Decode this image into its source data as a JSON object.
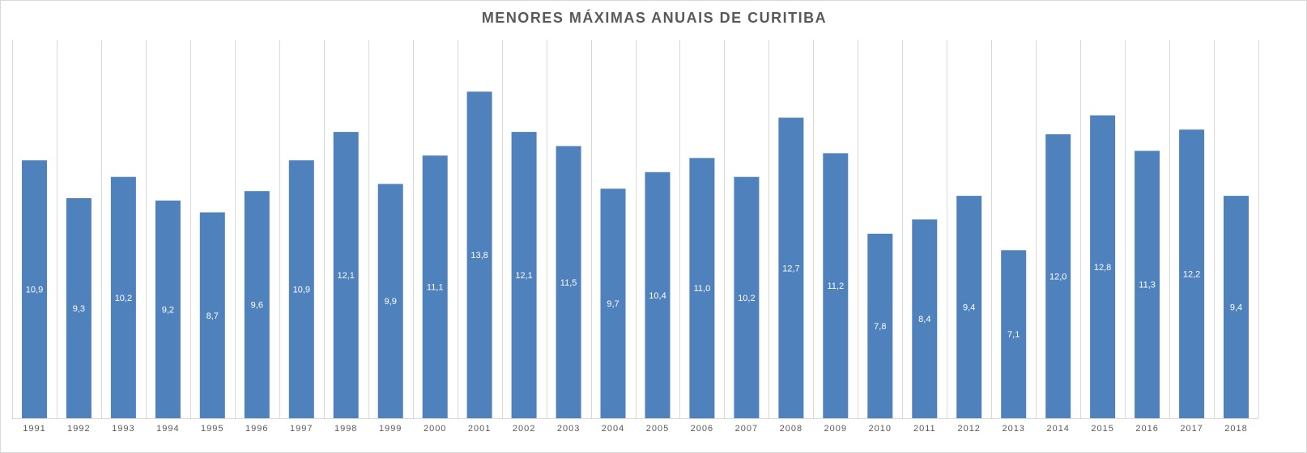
{
  "chart_data": {
    "type": "bar",
    "title": "MENORES MÁXIMAS ANUAIS DE CURITIBA",
    "xlabel": "",
    "ylabel": "",
    "categories": [
      "1991",
      "1992",
      "1993",
      "1994",
      "1995",
      "1996",
      "1997",
      "1998",
      "1999",
      "2000",
      "2001",
      "2002",
      "2003",
      "2004",
      "2005",
      "2006",
      "2007",
      "2008",
      "2009",
      "2010",
      "2011",
      "2012",
      "2013",
      "2014",
      "2015",
      "2016",
      "2017",
      "2018"
    ],
    "values": [
      10.9,
      9.3,
      10.2,
      9.2,
      8.7,
      9.6,
      10.9,
      12.1,
      9.9,
      11.1,
      13.8,
      12.1,
      11.5,
      9.7,
      10.4,
      11.0,
      10.2,
      12.7,
      11.2,
      7.8,
      8.4,
      9.4,
      7.1,
      12.0,
      12.8,
      11.3,
      12.2,
      9.4
    ],
    "data_labels": [
      "10,9",
      "9,3",
      "10,2",
      "9,2",
      "8,7",
      "9,6",
      "10,9",
      "12,1",
      "9,9",
      "11,1",
      "13,8",
      "12,1",
      "11,5",
      "9,7",
      "10,4",
      "11,0",
      "10,2",
      "12,7",
      "11,2",
      "7,8",
      "8,4",
      "9,4",
      "7,1",
      "12,0",
      "12,8",
      "11,3",
      "12,2",
      "9,4"
    ],
    "ylim": [
      0,
      16
    ],
    "grid": true,
    "legend": "none",
    "colors": {
      "bar": "#4f81bd",
      "grid": "#d9d9d9",
      "label": "#ffffff",
      "tick": "#595959",
      "title": "#595959"
    }
  }
}
